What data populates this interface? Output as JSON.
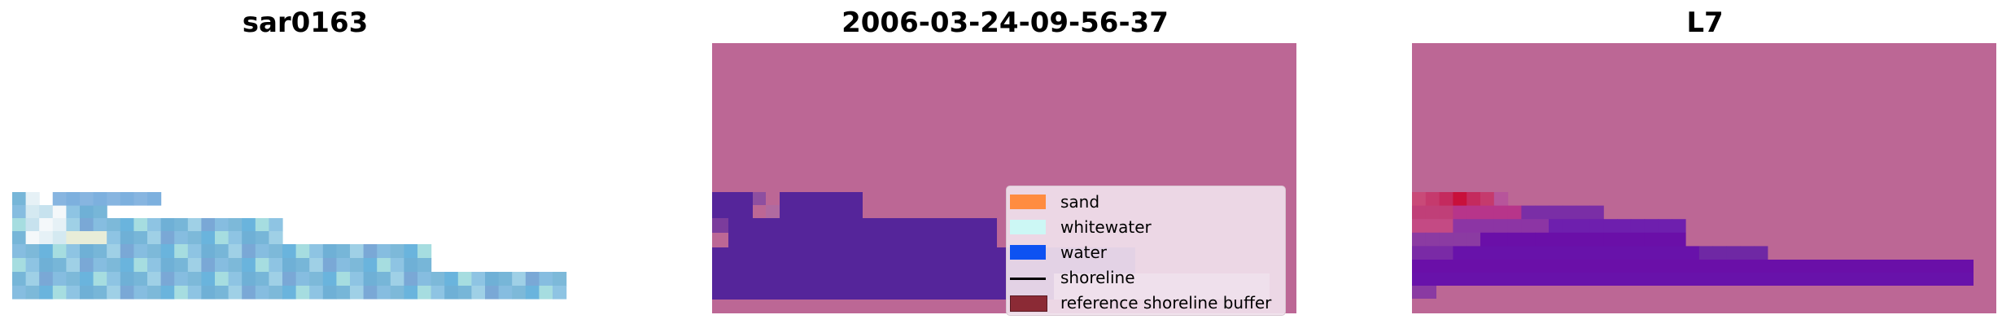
{
  "chart_data": [
    {
      "type": "heatmap",
      "title": "sar0163",
      "description_colors": {
        "light_blue": "#77b6d8",
        "white": "#f4f8fa",
        "steel": "#7aa8d6",
        "teal": "#a6dde0"
      }
    },
    {
      "type": "heatmap",
      "title": "2006-03-24-09-56-37",
      "colors": {
        "background": "#bc6795",
        "water_class": "#55259a",
        "light": "#ddd3ea"
      }
    },
    {
      "type": "heatmap",
      "title": "L7",
      "colors": {
        "background": "#bc6795",
        "dark": "#6a0fa8",
        "red": "#c8103b"
      }
    }
  ],
  "legend": {
    "items": [
      {
        "label": "sand",
        "color": "#ff8c40",
        "kind": "patch"
      },
      {
        "label": "whitewater",
        "color": "#ccf7f5",
        "kind": "patch"
      },
      {
        "label": "water",
        "color": "#0d52f2",
        "kind": "patch"
      },
      {
        "label": "shoreline",
        "color": "#000000",
        "kind": "line"
      },
      {
        "label": "reference shoreline buffer",
        "color": "#8b2a35",
        "kind": "patch"
      }
    ]
  }
}
